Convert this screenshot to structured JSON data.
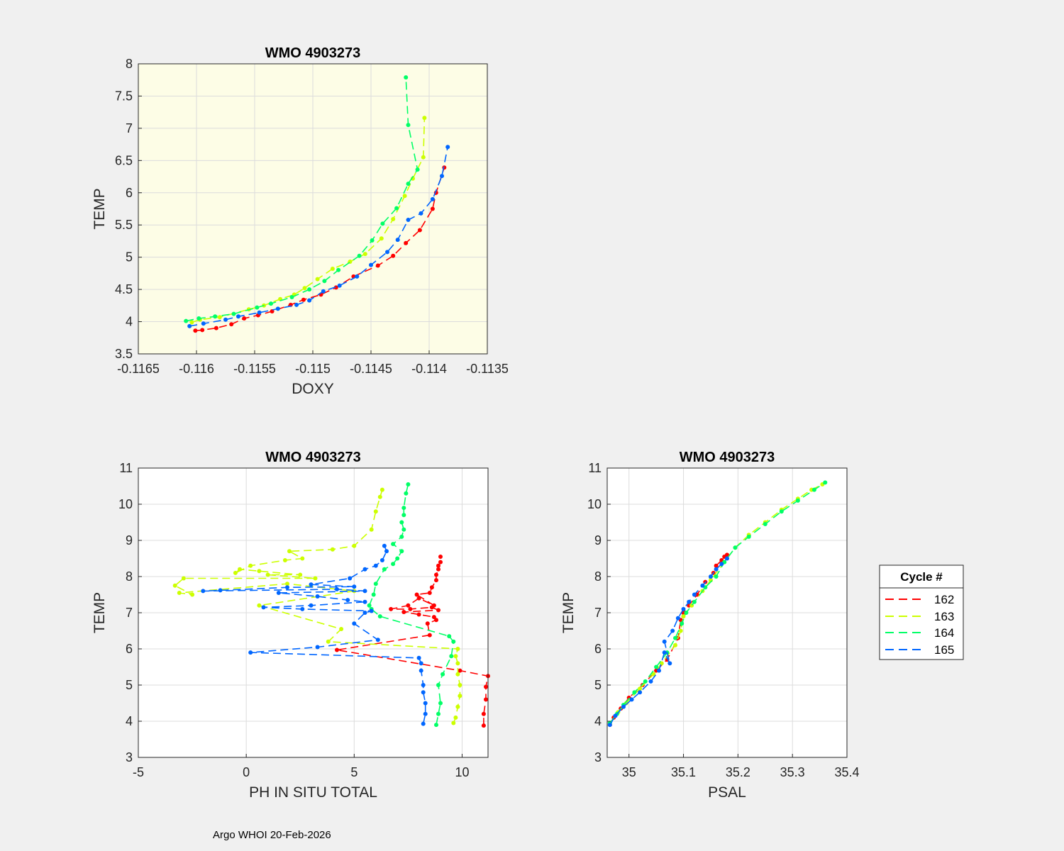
{
  "colors": {
    "figure_background": "#f0f0f0",
    "doxy_axes_background": "#fdfde6",
    "axes_background": "#ffffff",
    "c162": "#ff0000",
    "c163": "#ccff00",
    "c164": "#00ff66",
    "c165": "#0066ff"
  },
  "footer": "Argo WHOI 20-Feb-2026",
  "legend": {
    "title": "Cycle #",
    "entries": [
      {
        "label": "162",
        "color": "#ff0000"
      },
      {
        "label": "163",
        "color": "#ccff00"
      },
      {
        "label": "164",
        "color": "#00ff66"
      },
      {
        "label": "165",
        "color": "#0066ff"
      }
    ]
  },
  "chart_data": [
    {
      "id": "doxy",
      "type": "line",
      "title": "WMO 4903273",
      "xlabel": "DOXY",
      "ylabel": "TEMP",
      "xlim": [
        -0.1165,
        -0.1135
      ],
      "ylim": [
        3.5,
        8
      ],
      "xticks": [
        -0.1165,
        -0.116,
        -0.1155,
        -0.115,
        -0.1145,
        -0.114,
        -0.1135
      ],
      "xtick_labels": [
        "-0.1165",
        "-0.116",
        "-0.1155",
        "-0.115",
        "-0.1145",
        "-0.114",
        "-0.1135"
      ],
      "yticks": [
        3.5,
        4,
        4.5,
        5,
        5.5,
        6,
        6.5,
        7,
        7.5,
        8
      ],
      "ytick_labels": [
        "3.5",
        "4",
        "4.5",
        "5",
        "5.5",
        "6",
        "6.5",
        "7",
        "7.5",
        "8"
      ],
      "grid": true,
      "series": [
        {
          "name": "162",
          "x": [
            -0.11601,
            -0.11595,
            -0.11583,
            -0.1157,
            -0.11559,
            -0.11547,
            -0.11535,
            -0.11519,
            -0.11508,
            -0.11493,
            -0.1148,
            -0.11465,
            -0.11444,
            -0.11431,
            -0.1142,
            -0.11408,
            -0.11397,
            -0.11394,
            -0.11387
          ],
          "y": [
            3.86,
            3.87,
            3.9,
            3.96,
            4.05,
            4.1,
            4.16,
            4.26,
            4.34,
            4.42,
            4.53,
            4.7,
            4.87,
            5.02,
            5.22,
            5.42,
            5.75,
            6.0,
            6.39
          ]
        },
        {
          "name": "163",
          "x": [
            -0.11604,
            -0.11597,
            -0.1158,
            -0.11555,
            -0.11542,
            -0.11528,
            -0.11516,
            -0.11507,
            -0.11496,
            -0.11483,
            -0.11468,
            -0.11455,
            -0.11441,
            -0.11431,
            -0.11421,
            -0.11414,
            -0.11405,
            -0.11404
          ],
          "y": [
            3.99,
            4.03,
            4.07,
            4.19,
            4.25,
            4.35,
            4.42,
            4.52,
            4.66,
            4.82,
            4.93,
            5.05,
            5.29,
            5.59,
            5.95,
            6.22,
            6.55,
            7.16
          ]
        },
        {
          "name": "164",
          "x": [
            -0.11609,
            -0.11598,
            -0.11584,
            -0.11568,
            -0.11548,
            -0.11536,
            -0.11518,
            -0.11503,
            -0.1149,
            -0.11478,
            -0.1146,
            -0.11449,
            -0.1144,
            -0.11428,
            -0.11418,
            -0.1141,
            -0.11418,
            -0.1142
          ],
          "y": [
            4.01,
            4.05,
            4.08,
            4.12,
            4.22,
            4.28,
            4.38,
            4.5,
            4.63,
            4.8,
            5.02,
            5.26,
            5.52,
            5.76,
            6.14,
            6.36,
            7.05,
            7.79
          ]
        },
        {
          "name": "165",
          "x": [
            -0.11606,
            -0.11594,
            -0.11575,
            -0.11564,
            -0.11546,
            -0.1153,
            -0.11514,
            -0.11503,
            -0.11491,
            -0.11477,
            -0.11462,
            -0.1145,
            -0.11436,
            -0.11427,
            -0.11418,
            -0.11407,
            -0.11397,
            -0.11389,
            -0.11384
          ],
          "y": [
            3.93,
            3.97,
            4.03,
            4.08,
            4.14,
            4.2,
            4.26,
            4.33,
            4.47,
            4.56,
            4.7,
            4.88,
            5.08,
            5.27,
            5.58,
            5.68,
            5.9,
            6.26,
            6.71
          ]
        }
      ]
    },
    {
      "id": "ph",
      "type": "line",
      "title": "WMO 4903273",
      "xlabel": "PH IN SITU TOTAL",
      "ylabel": "TEMP",
      "xlim": [
        -5,
        11.2
      ],
      "ylim": [
        3,
        11
      ],
      "xticks": [
        -5,
        0,
        5,
        10
      ],
      "xtick_labels": [
        "-5",
        "0",
        "5",
        "10"
      ],
      "yticks": [
        3,
        4,
        5,
        6,
        7,
        8,
        9,
        10,
        11
      ],
      "ytick_labels": [
        "3",
        "4",
        "5",
        "6",
        "7",
        "8",
        "9",
        "10",
        "11"
      ],
      "grid": true,
      "series": [
        {
          "name": "162",
          "x": [
            11.0,
            11.0,
            11.1,
            11.1,
            11.2,
            9.9,
            4.2,
            8.5,
            8.4,
            8.8,
            8.7,
            8.0,
            7.3,
            8.9,
            8.6,
            7.6,
            6.7,
            7.5,
            8.0,
            8.7,
            7.9,
            8.5,
            8.6,
            8.8,
            8.8,
            8.9,
            8.9,
            9.0,
            9.0
          ],
          "y": [
            3.88,
            4.2,
            4.6,
            4.95,
            5.25,
            5.4,
            5.97,
            6.38,
            6.7,
            6.8,
            6.88,
            6.95,
            7.02,
            7.07,
            7.15,
            7.1,
            7.1,
            7.2,
            7.4,
            7.2,
            7.5,
            7.55,
            7.7,
            7.9,
            8.05,
            8.2,
            8.3,
            8.4,
            8.55
          ]
        },
        {
          "name": "163",
          "x": [
            9.6,
            9.7,
            9.8,
            9.9,
            9.9,
            9.8,
            9.8,
            9.7,
            9.8,
            3.8,
            4.4,
            0.6,
            5.0,
            1.9,
            -3.1,
            -2.5,
            -3.3,
            -2.9,
            3.2,
            1.0,
            2.5,
            0.6,
            -0.3,
            -0.5,
            0.2,
            1.8,
            2.6,
            2.0,
            4.0,
            5.0,
            5.8,
            6.0,
            6.2,
            6.3
          ],
          "y": [
            3.95,
            4.1,
            4.4,
            4.7,
            5.0,
            5.3,
            5.6,
            5.8,
            6.0,
            6.2,
            6.55,
            7.2,
            7.6,
            7.8,
            7.55,
            7.5,
            7.75,
            7.95,
            7.95,
            8.05,
            8.05,
            8.15,
            8.2,
            8.1,
            8.3,
            8.45,
            8.5,
            8.7,
            8.75,
            8.85,
            9.3,
            9.8,
            10.2,
            10.4
          ]
        },
        {
          "name": "164",
          "x": [
            8.8,
            8.9,
            9.0,
            8.9,
            9.1,
            9.5,
            9.6,
            9.4,
            6.2,
            5.8,
            5.7,
            5.9,
            6.0,
            6.4,
            6.8,
            7.0,
            7.2,
            6.8,
            7.2,
            7.3,
            7.2,
            7.3,
            7.3,
            7.4,
            7.5
          ],
          "y": [
            3.9,
            4.2,
            4.5,
            5.0,
            5.3,
            5.8,
            6.2,
            6.35,
            6.9,
            7.1,
            7.2,
            7.5,
            7.8,
            8.2,
            8.35,
            8.5,
            8.7,
            8.9,
            9.1,
            9.3,
            9.5,
            9.7,
            9.9,
            10.3,
            10.55
          ]
        },
        {
          "name": "165",
          "x": [
            8.2,
            8.3,
            8.3,
            8.2,
            8.2,
            8.1,
            8.1,
            8.0,
            0.2,
            3.3,
            6.1,
            5.0,
            5.5,
            5.8,
            2.6,
            0.8,
            3.0,
            5.5,
            4.7,
            3.3,
            1.5,
            5.5,
            4.2,
            -2.0,
            -1.2,
            1.9,
            5.0,
            3.0,
            4.8,
            5.5,
            6.0,
            6.3,
            6.5,
            6.4
          ],
          "y": [
            3.93,
            4.2,
            4.5,
            4.8,
            5.0,
            5.4,
            5.6,
            5.75,
            5.9,
            6.05,
            6.25,
            6.7,
            7.0,
            7.05,
            7.1,
            7.15,
            7.2,
            7.3,
            7.35,
            7.45,
            7.55,
            7.6,
            7.65,
            7.6,
            7.62,
            7.7,
            7.72,
            7.78,
            7.95,
            8.2,
            8.3,
            8.45,
            8.7,
            8.85
          ]
        }
      ]
    },
    {
      "id": "psal",
      "type": "line",
      "title": "WMO 4903273",
      "xlabel": "PSAL",
      "ylabel": "TEMP",
      "xlim": [
        34.96,
        35.4
      ],
      "ylim": [
        3,
        11
      ],
      "xticks": [
        35,
        35.1,
        35.2,
        35.3,
        35.4
      ],
      "xtick_labels": [
        "35",
        "35.1",
        "35.2",
        "35.3",
        "35.4"
      ],
      "yticks": [
        3,
        4,
        5,
        6,
        7,
        8,
        9,
        10,
        11
      ],
      "ytick_labels": [
        "3",
        "4",
        "5",
        "6",
        "7",
        "8",
        "9",
        "10",
        "11"
      ],
      "grid": true,
      "series": [
        {
          "name": "162",
          "x": [
            34.965,
            34.972,
            34.985,
            35.0,
            35.025,
            35.05,
            35.07,
            35.09,
            35.095,
            35.1,
            35.11,
            35.125,
            35.14,
            35.155,
            35.16,
            35.17,
            35.175,
            35.18
          ],
          "y": [
            3.9,
            4.1,
            4.35,
            4.65,
            5.0,
            5.4,
            5.7,
            6.3,
            6.8,
            7.0,
            7.2,
            7.5,
            7.85,
            8.1,
            8.3,
            8.45,
            8.55,
            8.6
          ]
        },
        {
          "name": "163",
          "x": [
            34.965,
            34.98,
            34.995,
            35.02,
            35.045,
            35.06,
            35.085,
            35.095,
            35.1,
            35.115,
            35.135,
            35.15,
            35.175,
            35.195,
            35.22,
            35.25,
            35.28,
            35.31,
            35.335,
            35.355
          ],
          "y": [
            3.95,
            4.25,
            4.5,
            4.9,
            5.3,
            5.6,
            6.1,
            6.5,
            6.9,
            7.2,
            7.6,
            7.9,
            8.4,
            8.8,
            9.15,
            9.5,
            9.85,
            10.15,
            10.4,
            10.55
          ]
        },
        {
          "name": "164",
          "x": [
            34.965,
            34.978,
            34.99,
            35.01,
            35.03,
            35.05,
            35.07,
            35.085,
            35.097,
            35.105,
            35.12,
            35.14,
            35.16,
            35.175,
            35.195,
            35.22,
            35.25,
            35.28,
            35.31,
            35.34,
            35.36
          ],
          "y": [
            3.95,
            4.2,
            4.45,
            4.8,
            5.1,
            5.5,
            5.9,
            6.3,
            6.7,
            7.0,
            7.3,
            7.7,
            8.0,
            8.4,
            8.8,
            9.1,
            9.45,
            9.8,
            10.1,
            10.4,
            10.6
          ]
        },
        {
          "name": "165",
          "x": [
            34.965,
            34.975,
            34.99,
            35.005,
            35.02,
            35.04,
            35.055,
            35.065,
            35.075,
            35.065,
            35.08,
            35.09,
            35.1,
            35.11,
            35.12,
            35.135,
            35.15,
            35.16,
            35.17,
            35.18
          ],
          "y": [
            3.9,
            4.15,
            4.4,
            4.6,
            4.8,
            5.1,
            5.4,
            5.9,
            5.6,
            6.2,
            6.5,
            6.85,
            7.1,
            7.3,
            7.5,
            7.75,
            8.0,
            8.2,
            8.35,
            8.5
          ]
        }
      ]
    }
  ]
}
